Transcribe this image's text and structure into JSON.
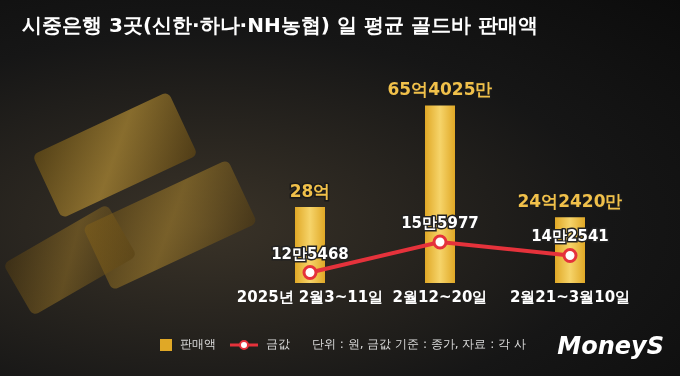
{
  "chart_data": {
    "type": "bar",
    "title": "시중은행 3곳(신한·하나·NH농협) 일 평균 골드바 판매액",
    "categories": [
      "2025년 2월3~11일",
      "2월12~20일",
      "2월21~3월10일"
    ],
    "series": [
      {
        "name": "판매액",
        "type": "bar",
        "color": "#e0a826",
        "values": [
          2800000000,
          6540250000,
          2424200000
        ],
        "value_labels": [
          "28억",
          "65억4025만",
          "24억2420만"
        ]
      },
      {
        "name": "금값",
        "type": "line",
        "axis": "y2",
        "color": "#e5323b",
        "marker": "circle",
        "values": [
          125468,
          155977,
          142541
        ],
        "value_labels": [
          "12만5468",
          "15만5977",
          "14만2541"
        ]
      }
    ],
    "ylim": [
      0,
      7000000000
    ],
    "y2lim": [
      115000,
      305000
    ],
    "data_labels": true,
    "tick_labels": "x",
    "grid": false,
    "note": "단위 : 원, 금값 기준 : 종가, 자료 : 각 사",
    "logo": "MoneyS"
  }
}
